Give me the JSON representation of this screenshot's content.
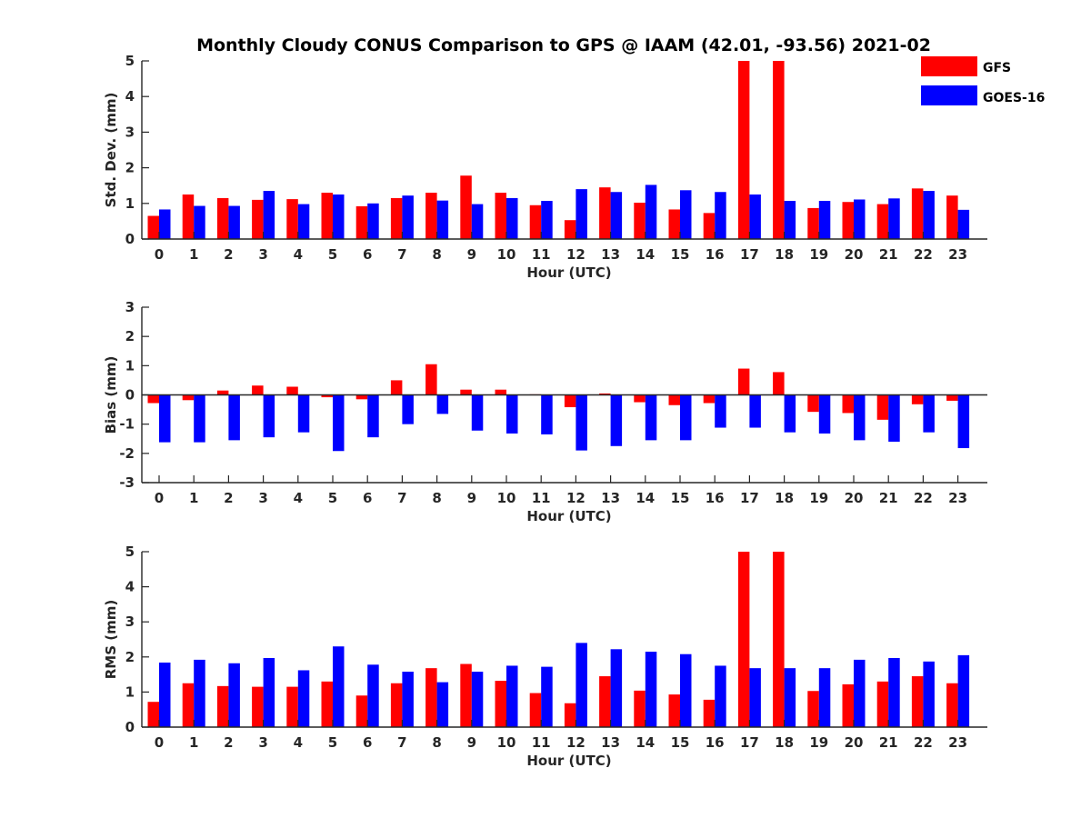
{
  "chart_data": {
    "title": "Monthly Cloudy CONUS Comparison to GPS @ IAAM (42.01, -93.56) 2021-02",
    "colors": {
      "GFS": "#ff0000",
      "GOES-16": "#0000ff",
      "axis": "#262626"
    },
    "legend": {
      "placement": "top-right",
      "entries": [
        "GFS",
        "GOES-16"
      ]
    },
    "categories": [
      "0",
      "1",
      "2",
      "3",
      "4",
      "5",
      "6",
      "7",
      "8",
      "9",
      "10",
      "11",
      "12",
      "13",
      "14",
      "15",
      "16",
      "17",
      "18",
      "19",
      "20",
      "21",
      "22",
      "23"
    ],
    "panels": [
      {
        "type": "bar",
        "ylabel": "Std. Dev. (mm)",
        "xlabel": "Hour (UTC)",
        "ylim": [
          0,
          5
        ],
        "yticks": [
          0,
          1,
          2,
          3,
          4,
          5
        ],
        "grid": false,
        "series": [
          {
            "name": "GFS",
            "values": [
              0.65,
              1.25,
              1.15,
              1.1,
              1.12,
              1.3,
              0.92,
              1.15,
              1.3,
              1.78,
              1.3,
              0.95,
              0.53,
              1.45,
              1.02,
              0.83,
              0.73,
              5.0,
              5.0,
              0.87,
              1.04,
              0.98,
              1.42,
              1.22
            ]
          },
          {
            "name": "GOES-16",
            "values": [
              0.83,
              0.93,
              0.93,
              1.35,
              0.98,
              1.25,
              1.0,
              1.22,
              1.08,
              0.98,
              1.15,
              1.07,
              1.4,
              1.32,
              1.52,
              1.37,
              1.32,
              1.25,
              1.07,
              1.07,
              1.11,
              1.14,
              1.35,
              0.82
            ]
          }
        ]
      },
      {
        "type": "bar",
        "ylabel": "Bias (mm)",
        "xlabel": "Hour (UTC)",
        "ylim": [
          -3,
          3
        ],
        "yticks": [
          -3,
          -2,
          -1,
          0,
          1,
          2,
          3
        ],
        "grid": false,
        "series": [
          {
            "name": "GFS",
            "values": [
              -0.28,
              -0.18,
              0.15,
              0.32,
              0.28,
              -0.08,
              -0.15,
              0.5,
              1.05,
              0.18,
              0.18,
              0.02,
              -0.42,
              0.05,
              -0.25,
              -0.35,
              -0.28,
              0.9,
              0.78,
              -0.58,
              -0.62,
              -0.85,
              -0.32,
              -0.2
            ]
          },
          {
            "name": "GOES-16",
            "values": [
              -1.62,
              -1.62,
              -1.55,
              -1.45,
              -1.28,
              -1.92,
              -1.45,
              -1.0,
              -0.65,
              -1.22,
              -1.32,
              -1.35,
              -1.9,
              -1.75,
              -1.55,
              -1.55,
              -1.12,
              -1.12,
              -1.28,
              -1.32,
              -1.55,
              -1.6,
              -1.28,
              -1.82
            ]
          }
        ]
      },
      {
        "type": "bar",
        "ylabel": "RMS (mm)",
        "xlabel": "Hour (UTC)",
        "ylim": [
          0,
          5
        ],
        "yticks": [
          0,
          1,
          2,
          3,
          4,
          5
        ],
        "grid": false,
        "series": [
          {
            "name": "GFS",
            "values": [
              0.72,
              1.25,
              1.17,
              1.15,
              1.15,
              1.3,
              0.9,
              1.25,
              1.68,
              1.8,
              1.32,
              0.97,
              0.68,
              1.45,
              1.04,
              0.93,
              0.78,
              5.0,
              5.0,
              1.03,
              1.22,
              1.3,
              1.45,
              1.25
            ]
          },
          {
            "name": "GOES-16",
            "values": [
              1.84,
              1.92,
              1.82,
              1.97,
              1.62,
              2.3,
              1.78,
              1.58,
              1.28,
              1.58,
              1.75,
              1.72,
              2.4,
              2.22,
              2.15,
              2.08,
              1.75,
              1.68,
              1.68,
              1.68,
              1.92,
              1.97,
              1.87,
              2.05
            ]
          }
        ]
      }
    ]
  }
}
